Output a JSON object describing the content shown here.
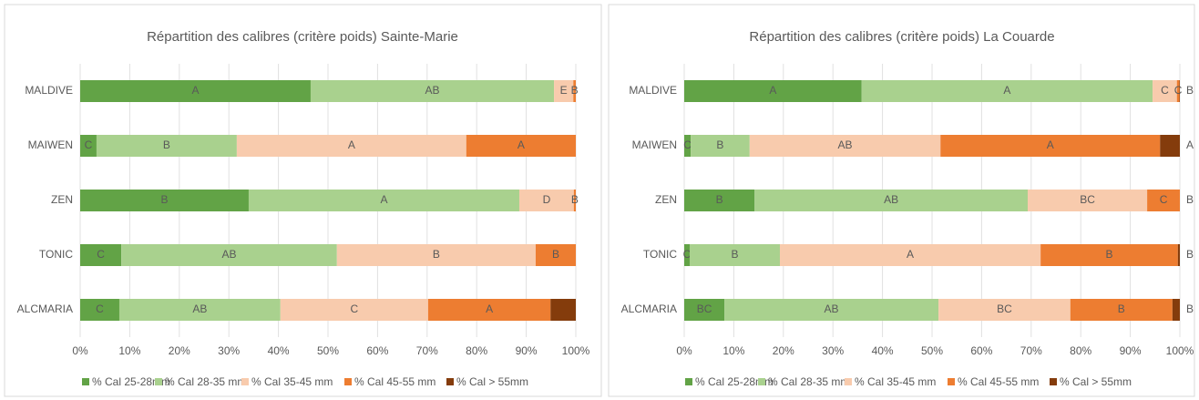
{
  "chart_data": [
    {
      "type": "bar",
      "orientation": "horizontal",
      "stacked": true,
      "title": "Répartition des calibres (critère poids) Sainte-Marie",
      "categories": [
        "MALDIVE",
        "MAIWEN",
        "ZEN",
        "TONIC",
        "ALCMARIA"
      ],
      "xlim": [
        0,
        100
      ],
      "xticks": [
        {
          "value": 0,
          "label": "0%"
        },
        {
          "value": 10,
          "label": "10%"
        },
        {
          "value": 20,
          "label": "20%"
        },
        {
          "value": 30,
          "label": "30%"
        },
        {
          "value": 40,
          "label": "40%"
        },
        {
          "value": 50,
          "label": "50%"
        },
        {
          "value": 60,
          "label": "60%"
        },
        {
          "value": 70,
          "label": "70%"
        },
        {
          "value": 80,
          "label": "80%"
        },
        {
          "value": 90,
          "label": "90%"
        },
        {
          "value": 100,
          "label": "100%"
        }
      ],
      "legend": "bottom",
      "series": [
        {
          "name": "% Cal 25-28mm",
          "color": "#62a346",
          "values": [
            46.5,
            3.3,
            34.0,
            8.3,
            7.9
          ],
          "value_labels": [
            "A",
            "C",
            "B",
            "C",
            "C"
          ]
        },
        {
          "name": "% Cal 28-35 mm",
          "color": "#a9d18e",
          "values": [
            49.1,
            28.3,
            54.6,
            43.5,
            32.5
          ],
          "value_labels": [
            "AB",
            "B",
            "A",
            "AB",
            "AB"
          ]
        },
        {
          "name": "% Cal 35-45 mm",
          "color": "#f8cbad",
          "values": [
            3.9,
            46.3,
            11.0,
            40.1,
            29.8
          ],
          "value_labels": [
            "E",
            "A",
            "D",
            "B",
            "C"
          ]
        },
        {
          "name": "% Cal 45-55 mm",
          "color": "#ed7d31",
          "values": [
            0.5,
            22.1,
            0.4,
            8.1,
            24.7
          ],
          "value_labels": [
            "B",
            "A",
            "B",
            "B",
            "A"
          ]
        },
        {
          "name": "% Cal > 55mm",
          "color": "#843c0c",
          "values": [
            0,
            0,
            0,
            0,
            5.1
          ],
          "value_labels": [
            null,
            null,
            null,
            null,
            null
          ]
        }
      ]
    },
    {
      "type": "bar",
      "orientation": "horizontal",
      "stacked": true,
      "title": "Répartition des calibres (critère poids) La Couarde",
      "categories": [
        "MALDIVE",
        "MAIWEN",
        "ZEN",
        "TONIC",
        "ALCMARIA"
      ],
      "xlim": [
        0,
        100
      ],
      "xticks": [
        {
          "value": 0,
          "label": "0%"
        },
        {
          "value": 10,
          "label": "10%"
        },
        {
          "value": 20,
          "label": "20%"
        },
        {
          "value": 30,
          "label": "30%"
        },
        {
          "value": 40,
          "label": "40%"
        },
        {
          "value": 50,
          "label": "50%"
        },
        {
          "value": 60,
          "label": "60%"
        },
        {
          "value": 70,
          "label": "70%"
        },
        {
          "value": 80,
          "label": "80%"
        },
        {
          "value": 90,
          "label": "90%"
        },
        {
          "value": 100,
          "label": "100%"
        }
      ],
      "legend": "bottom",
      "series": [
        {
          "name": "% Cal 25-28mm",
          "color": "#62a346",
          "values": [
            35.8,
            1.3,
            14.2,
            1.1,
            8.1
          ],
          "value_labels": [
            "A",
            "C",
            "B",
            "C",
            "BC"
          ]
        },
        {
          "name": "% Cal 28-35 mm",
          "color": "#a9d18e",
          "values": [
            58.7,
            11.9,
            55.1,
            18.2,
            43.2
          ],
          "value_labels": [
            "A",
            "B",
            "AB",
            "B",
            "AB"
          ]
        },
        {
          "name": "% Cal 35-45 mm",
          "color": "#f8cbad",
          "values": [
            4.9,
            38.5,
            24.1,
            52.6,
            26.6
          ],
          "value_labels": [
            "C",
            "AB",
            "BC",
            "A",
            "BC"
          ]
        },
        {
          "name": "% Cal 45-55 mm",
          "color": "#ed7d31",
          "values": [
            0.5,
            44.3,
            6.6,
            27.7,
            20.6
          ],
          "value_labels": [
            "C",
            "A",
            "C",
            "B",
            "B"
          ]
        },
        {
          "name": "% Cal > 55mm",
          "color": "#843c0c",
          "values": [
            0.1,
            4.0,
            0,
            0.4,
            1.5
          ],
          "value_labels": [
            "B",
            "A",
            "B",
            "B",
            "B"
          ]
        }
      ]
    }
  ]
}
